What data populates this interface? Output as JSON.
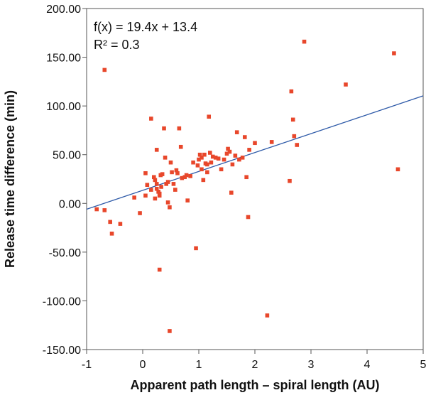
{
  "chart_data": {
    "type": "scatter",
    "title": "",
    "xlabel": "Apparent path length – spiral length (AU)",
    "ylabel": "Release time difference (min)",
    "xlim": [
      -1,
      5
    ],
    "ylim": [
      -150,
      200
    ],
    "x_ticks": [
      -1,
      0,
      1,
      2,
      3,
      4,
      5
    ],
    "x_tick_labels": [
      "-1",
      "0",
      "1",
      "2",
      "3",
      "4",
      "5"
    ],
    "y_ticks": [
      -150,
      -100,
      -50,
      0,
      50,
      100,
      150,
      200
    ],
    "y_tick_labels": [
      "-150.00",
      "-100.00",
      "-50.00",
      "0.00",
      "50.00",
      "100.00",
      "150.00",
      "200.00"
    ],
    "grid": false,
    "annotations": [
      "f(x) = 19.4x + 13.4",
      "R² = 0.3"
    ],
    "trendline": {
      "slope": 19.4,
      "intercept": 13.4,
      "color": "#2e5aa8"
    },
    "marker_color": "#e8472b",
    "points": [
      [
        -0.82,
        -6
      ],
      [
        -0.68,
        -7
      ],
      [
        -0.68,
        137
      ],
      [
        -0.58,
        -19
      ],
      [
        -0.55,
        -31
      ],
      [
        -0.4,
        -21
      ],
      [
        -0.15,
        6
      ],
      [
        -0.05,
        -10
      ],
      [
        0.05,
        31
      ],
      [
        0.05,
        8
      ],
      [
        0.08,
        19
      ],
      [
        0.15,
        14
      ],
      [
        0.15,
        87
      ],
      [
        0.2,
        27
      ],
      [
        0.22,
        5
      ],
      [
        0.22,
        24
      ],
      [
        0.25,
        20
      ],
      [
        0.25,
        55
      ],
      [
        0.25,
        15
      ],
      [
        0.28,
        12
      ],
      [
        0.3,
        8
      ],
      [
        0.3,
        10
      ],
      [
        0.3,
        -68
      ],
      [
        0.32,
        29
      ],
      [
        0.33,
        17
      ],
      [
        0.35,
        30
      ],
      [
        0.38,
        77
      ],
      [
        0.4,
        47
      ],
      [
        0.42,
        20
      ],
      [
        0.45,
        1
      ],
      [
        0.45,
        22
      ],
      [
        0.48,
        -4
      ],
      [
        0.48,
        -131
      ],
      [
        0.5,
        42
      ],
      [
        0.52,
        32
      ],
      [
        0.55,
        20
      ],
      [
        0.58,
        14
      ],
      [
        0.6,
        34
      ],
      [
        0.62,
        31
      ],
      [
        0.65,
        77
      ],
      [
        0.68,
        58
      ],
      [
        0.7,
        26
      ],
      [
        0.75,
        27
      ],
      [
        0.78,
        29
      ],
      [
        0.8,
        3
      ],
      [
        0.85,
        28
      ],
      [
        0.9,
        42
      ],
      [
        0.95,
        -46
      ],
      [
        0.98,
        39
      ],
      [
        1.0,
        45
      ],
      [
        1.02,
        50
      ],
      [
        1.05,
        47
      ],
      [
        1.05,
        35
      ],
      [
        1.08,
        24
      ],
      [
        1.1,
        50
      ],
      [
        1.12,
        41
      ],
      [
        1.15,
        40
      ],
      [
        1.15,
        32
      ],
      [
        1.18,
        89
      ],
      [
        1.2,
        52
      ],
      [
        1.22,
        42
      ],
      [
        1.25,
        48
      ],
      [
        1.3,
        47
      ],
      [
        1.35,
        46
      ],
      [
        1.4,
        35
      ],
      [
        1.45,
        45
      ],
      [
        1.5,
        51
      ],
      [
        1.52,
        56
      ],
      [
        1.55,
        53
      ],
      [
        1.58,
        11
      ],
      [
        1.6,
        40
      ],
      [
        1.65,
        49
      ],
      [
        1.68,
        73
      ],
      [
        1.72,
        45
      ],
      [
        1.78,
        47
      ],
      [
        1.82,
        68
      ],
      [
        1.85,
        27
      ],
      [
        1.88,
        -14
      ],
      [
        1.9,
        55
      ],
      [
        2.0,
        62
      ],
      [
        2.22,
        -115
      ],
      [
        2.3,
        63
      ],
      [
        2.62,
        23
      ],
      [
        2.65,
        115
      ],
      [
        2.68,
        86
      ],
      [
        2.7,
        69
      ],
      [
        2.75,
        60
      ],
      [
        2.88,
        166
      ],
      [
        3.62,
        122
      ],
      [
        4.48,
        154
      ],
      [
        4.55,
        35
      ]
    ]
  }
}
